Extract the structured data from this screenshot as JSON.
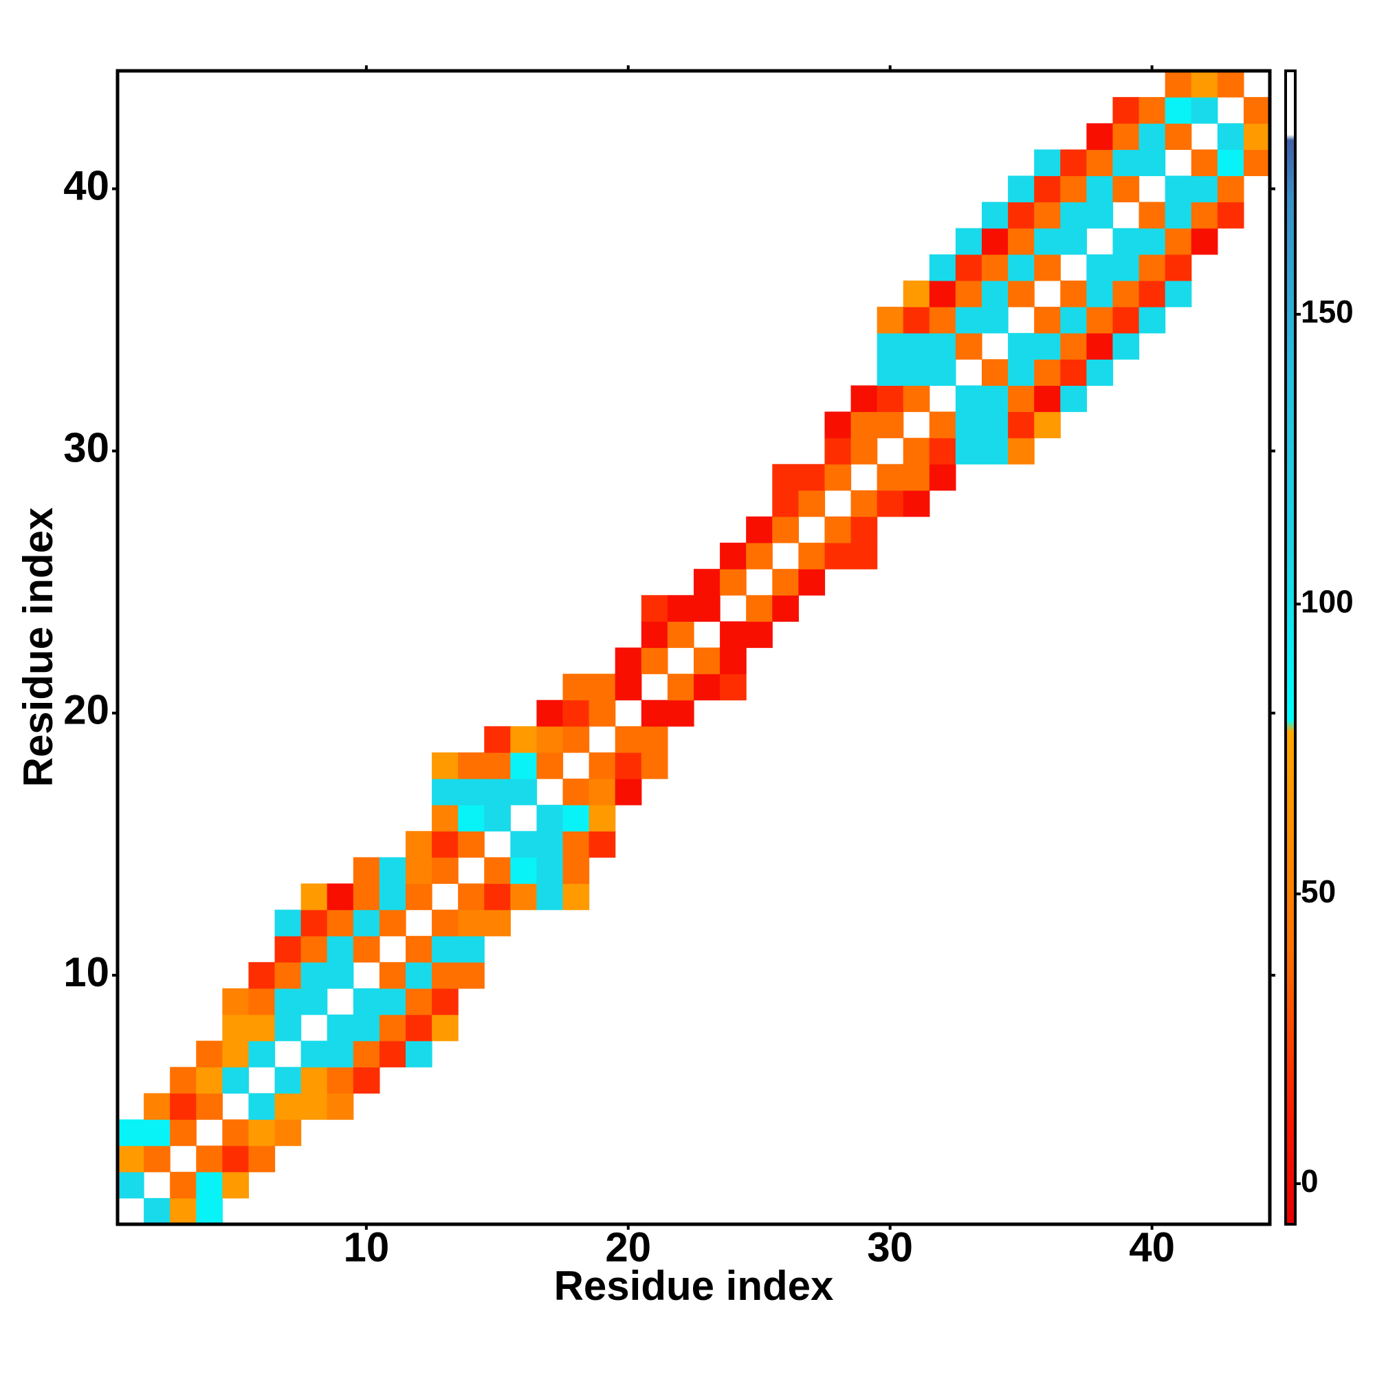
{
  "chart_data": {
    "type": "heatmap",
    "xlabel": "Residue index",
    "ylabel": "Residue index",
    "xlim": [
      0.5,
      44.5
    ],
    "ylim": [
      0.5,
      44.5
    ],
    "xticks": [
      10,
      20,
      30,
      40
    ],
    "yticks": [
      10,
      20,
      30,
      40
    ],
    "clim": [
      -7,
      192
    ],
    "cticks": [
      0,
      50,
      100,
      150
    ],
    "colorscale": [
      [
        -7,
        "#e80000"
      ],
      [
        10,
        "#ff1500"
      ],
      [
        25,
        "#ff4400"
      ],
      [
        40,
        "#ff7000"
      ],
      [
        55,
        "#ff8800"
      ],
      [
        78,
        "#ffa800"
      ],
      [
        80,
        "#00ffff"
      ],
      [
        110,
        "#1ed2e6"
      ],
      [
        140,
        "#28c0e0"
      ],
      [
        170,
        "#3a90c8"
      ],
      [
        180,
        "#4060a8"
      ],
      [
        181,
        "#ffffff"
      ],
      [
        192,
        "#ffffff"
      ]
    ],
    "rows": [
      {
        "y": 1,
        "x": [
          2,
          3,
          4
        ],
        "values": [
          105,
          68,
          88
        ]
      },
      {
        "y": 2,
        "x": [
          1,
          3,
          4,
          5
        ],
        "values": [
          105,
          40,
          88,
          68
        ]
      },
      {
        "y": 3,
        "x": [
          1,
          2,
          4,
          5,
          6
        ],
        "values": [
          68,
          40,
          40,
          18,
          40
        ]
      },
      {
        "y": 4,
        "x": [
          1,
          2,
          3,
          5,
          6,
          7
        ],
        "values": [
          88,
          88,
          40,
          40,
          68,
          52
        ]
      },
      {
        "y": 5,
        "x": [
          2,
          3,
          4,
          6,
          7,
          8,
          9
        ],
        "values": [
          52,
          18,
          40,
          105,
          68,
          68,
          52
        ]
      },
      {
        "y": 6,
        "x": [
          3,
          4,
          5,
          7,
          8,
          9,
          10
        ],
        "values": [
          40,
          68,
          105,
          105,
          68,
          40,
          18
        ]
      },
      {
        "y": 7,
        "x": [
          4,
          5,
          6,
          8,
          9,
          10,
          11,
          12
        ],
        "values": [
          40,
          68,
          105,
          105,
          105,
          40,
          18,
          105
        ]
      },
      {
        "y": 8,
        "x": [
          5,
          6,
          7,
          9,
          10,
          11,
          12,
          13
        ],
        "values": [
          68,
          68,
          105,
          105,
          105,
          40,
          18,
          68
        ]
      },
      {
        "y": 9,
        "x": [
          5,
          6,
          7,
          8,
          10,
          11,
          12,
          13
        ],
        "values": [
          52,
          40,
          105,
          105,
          105,
          105,
          40,
          18
        ]
      },
      {
        "y": 10,
        "x": [
          6,
          7,
          8,
          9,
          11,
          12,
          13,
          14
        ],
        "values": [
          18,
          40,
          105,
          105,
          40,
          105,
          40,
          40
        ]
      },
      {
        "y": 11,
        "x": [
          7,
          8,
          9,
          10,
          12,
          13,
          14
        ],
        "values": [
          18,
          40,
          105,
          40,
          40,
          105,
          105
        ]
      },
      {
        "y": 12,
        "x": [
          7,
          8,
          9,
          10,
          11,
          13,
          14,
          15
        ],
        "values": [
          105,
          18,
          40,
          105,
          40,
          40,
          52,
          52
        ]
      },
      {
        "y": 13,
        "x": [
          8,
          9,
          10,
          11,
          12,
          14,
          15,
          16,
          17,
          18
        ],
        "values": [
          68,
          5,
          40,
          105,
          40,
          40,
          18,
          52,
          105,
          68
        ]
      },
      {
        "y": 14,
        "x": [
          10,
          11,
          12,
          13,
          15,
          16,
          17,
          18
        ],
        "values": [
          40,
          105,
          52,
          40,
          40,
          88,
          105,
          40
        ]
      },
      {
        "y": 15,
        "x": [
          12,
          13,
          14,
          16,
          17,
          18,
          19
        ],
        "values": [
          52,
          18,
          40,
          105,
          105,
          40,
          18
        ]
      },
      {
        "y": 16,
        "x": [
          13,
          14,
          15,
          17,
          18,
          19
        ],
        "values": [
          52,
          88,
          105,
          105,
          88,
          68
        ]
      },
      {
        "y": 17,
        "x": [
          13,
          14,
          15,
          16,
          18,
          19,
          20
        ],
        "values": [
          105,
          105,
          105,
          105,
          40,
          52,
          5
        ]
      },
      {
        "y": 18,
        "x": [
          13,
          14,
          15,
          16,
          17,
          19,
          20,
          21
        ],
        "values": [
          68,
          40,
          40,
          88,
          40,
          40,
          18,
          40
        ]
      },
      {
        "y": 19,
        "x": [
          15,
          16,
          17,
          18,
          20,
          21
        ],
        "values": [
          18,
          68,
          52,
          40,
          40,
          40
        ]
      },
      {
        "y": 20,
        "x": [
          17,
          18,
          19,
          21,
          22
        ],
        "values": [
          5,
          18,
          40,
          5,
          5
        ]
      },
      {
        "y": 21,
        "x": [
          18,
          19,
          20,
          22,
          23,
          24
        ],
        "values": [
          40,
          40,
          5,
          40,
          5,
          18
        ]
      },
      {
        "y": 22,
        "x": [
          20,
          21,
          23,
          24
        ],
        "values": [
          5,
          40,
          40,
          5
        ]
      },
      {
        "y": 23,
        "x": [
          21,
          22,
          24,
          25
        ],
        "values": [
          5,
          40,
          5,
          5
        ]
      },
      {
        "y": 24,
        "x": [
          21,
          22,
          23,
          25,
          26
        ],
        "values": [
          18,
          5,
          5,
          40,
          5
        ]
      },
      {
        "y": 25,
        "x": [
          23,
          24,
          26,
          27
        ],
        "values": [
          5,
          40,
          40,
          5
        ]
      },
      {
        "y": 26,
        "x": [
          24,
          25,
          27,
          28,
          29
        ],
        "values": [
          5,
          40,
          40,
          18,
          18
        ]
      },
      {
        "y": 27,
        "x": [
          25,
          26,
          28,
          29
        ],
        "values": [
          5,
          40,
          40,
          18
        ]
      },
      {
        "y": 28,
        "x": [
          26,
          27,
          29,
          30,
          31
        ],
        "values": [
          18,
          40,
          40,
          18,
          5
        ]
      },
      {
        "y": 29,
        "x": [
          26,
          27,
          28,
          30,
          31,
          32
        ],
        "values": [
          18,
          18,
          40,
          40,
          40,
          5
        ]
      },
      {
        "y": 30,
        "x": [
          28,
          29,
          31,
          32,
          33,
          34,
          35
        ],
        "values": [
          18,
          40,
          40,
          18,
          105,
          105,
          52
        ]
      },
      {
        "y": 31,
        "x": [
          28,
          29,
          30,
          32,
          33,
          34,
          35,
          36
        ],
        "values": [
          5,
          40,
          40,
          40,
          105,
          105,
          18,
          68
        ]
      },
      {
        "y": 32,
        "x": [
          29,
          30,
          31,
          33,
          34,
          35,
          36,
          37
        ],
        "values": [
          5,
          18,
          40,
          105,
          105,
          40,
          5,
          105
        ]
      },
      {
        "y": 33,
        "x": [
          30,
          31,
          32,
          34,
          35,
          36,
          37,
          38
        ],
        "values": [
          105,
          105,
          105,
          40,
          105,
          40,
          18,
          105
        ]
      },
      {
        "y": 34,
        "x": [
          30,
          31,
          32,
          33,
          35,
          36,
          37,
          38,
          39
        ],
        "values": [
          105,
          105,
          105,
          40,
          105,
          105,
          40,
          5,
          105
        ]
      },
      {
        "y": 35,
        "x": [
          30,
          31,
          32,
          33,
          34,
          36,
          37,
          38,
          39,
          40
        ],
        "values": [
          52,
          18,
          40,
          105,
          105,
          40,
          105,
          40,
          18,
          105
        ]
      },
      {
        "y": 36,
        "x": [
          31,
          32,
          33,
          34,
          35,
          37,
          38,
          39,
          40,
          41
        ],
        "values": [
          68,
          5,
          40,
          105,
          40,
          40,
          105,
          40,
          18,
          105
        ]
      },
      {
        "y": 37,
        "x": [
          32,
          33,
          34,
          35,
          36,
          38,
          39,
          40,
          41
        ],
        "values": [
          105,
          18,
          40,
          105,
          40,
          105,
          105,
          40,
          18
        ]
      },
      {
        "y": 38,
        "x": [
          33,
          34,
          35,
          36,
          37,
          39,
          40,
          41,
          42
        ],
        "values": [
          105,
          5,
          40,
          105,
          105,
          105,
          105,
          40,
          5
        ]
      },
      {
        "y": 39,
        "x": [
          34,
          35,
          36,
          37,
          38,
          40,
          41,
          42,
          43
        ],
        "values": [
          105,
          18,
          40,
          105,
          105,
          40,
          105,
          40,
          18
        ]
      },
      {
        "y": 40,
        "x": [
          35,
          36,
          37,
          38,
          39,
          41,
          42,
          43
        ],
        "values": [
          105,
          18,
          40,
          105,
          40,
          105,
          105,
          40
        ]
      },
      {
        "y": 41,
        "x": [
          36,
          37,
          38,
          39,
          40,
          42,
          43,
          44
        ],
        "values": [
          105,
          18,
          40,
          105,
          105,
          40,
          88,
          40
        ]
      },
      {
        "y": 42,
        "x": [
          38,
          39,
          40,
          41,
          43,
          44
        ],
        "values": [
          5,
          40,
          105,
          40,
          105,
          68
        ]
      },
      {
        "y": 43,
        "x": [
          39,
          40,
          41,
          42,
          44
        ],
        "values": [
          18,
          40,
          88,
          105,
          40
        ]
      },
      {
        "y": 44,
        "x": [
          41,
          42,
          43
        ],
        "values": [
          40,
          68,
          40
        ]
      }
    ]
  }
}
